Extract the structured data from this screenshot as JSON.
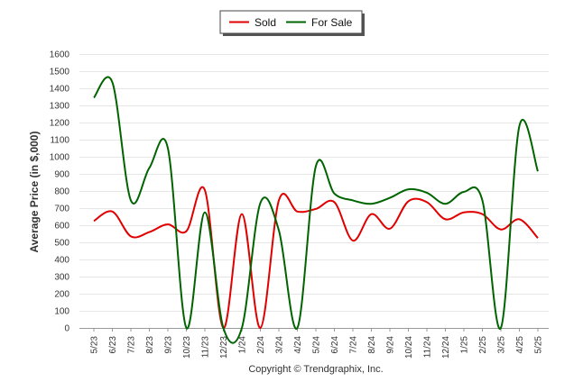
{
  "chart_data": {
    "type": "line",
    "title": "",
    "xlabel": "",
    "ylabel": "Average Price (in $,000)",
    "ylim": [
      0,
      1600
    ],
    "yticks": [
      0,
      100,
      200,
      300,
      400,
      500,
      600,
      700,
      800,
      900,
      1000,
      1100,
      1200,
      1300,
      1400,
      1500,
      1600
    ],
    "grid": true,
    "legend_position": "top-center",
    "categories": [
      "5/23",
      "6/23",
      "7/23",
      "8/23",
      "9/23",
      "10/23",
      "11/23",
      "12/23",
      "1/24",
      "2/24",
      "3/24",
      "4/24",
      "5/24",
      "6/24",
      "7/24",
      "8/24",
      "9/24",
      "10/24",
      "11/24",
      "12/24",
      "1/25",
      "2/25",
      "3/25",
      "4/25",
      "5/25"
    ],
    "series": [
      {
        "name": "Sold",
        "color": "#e00000",
        "values": [
          625,
          680,
          535,
          560,
          605,
          565,
          805,
          0,
          665,
          0,
          745,
          680,
          695,
          735,
          510,
          665,
          580,
          740,
          735,
          635,
          675,
          665,
          575,
          635,
          525
        ]
      },
      {
        "name": "For Sale",
        "color": "#006400",
        "values": [
          1345,
          1435,
          745,
          935,
          1050,
          0,
          675,
          0,
          0,
          730,
          570,
          0,
          945,
          785,
          745,
          725,
          760,
          810,
          790,
          725,
          795,
          745,
          0,
          1180,
          915
        ]
      }
    ]
  },
  "copyright": "Copyright © Trendgraphix, Inc."
}
